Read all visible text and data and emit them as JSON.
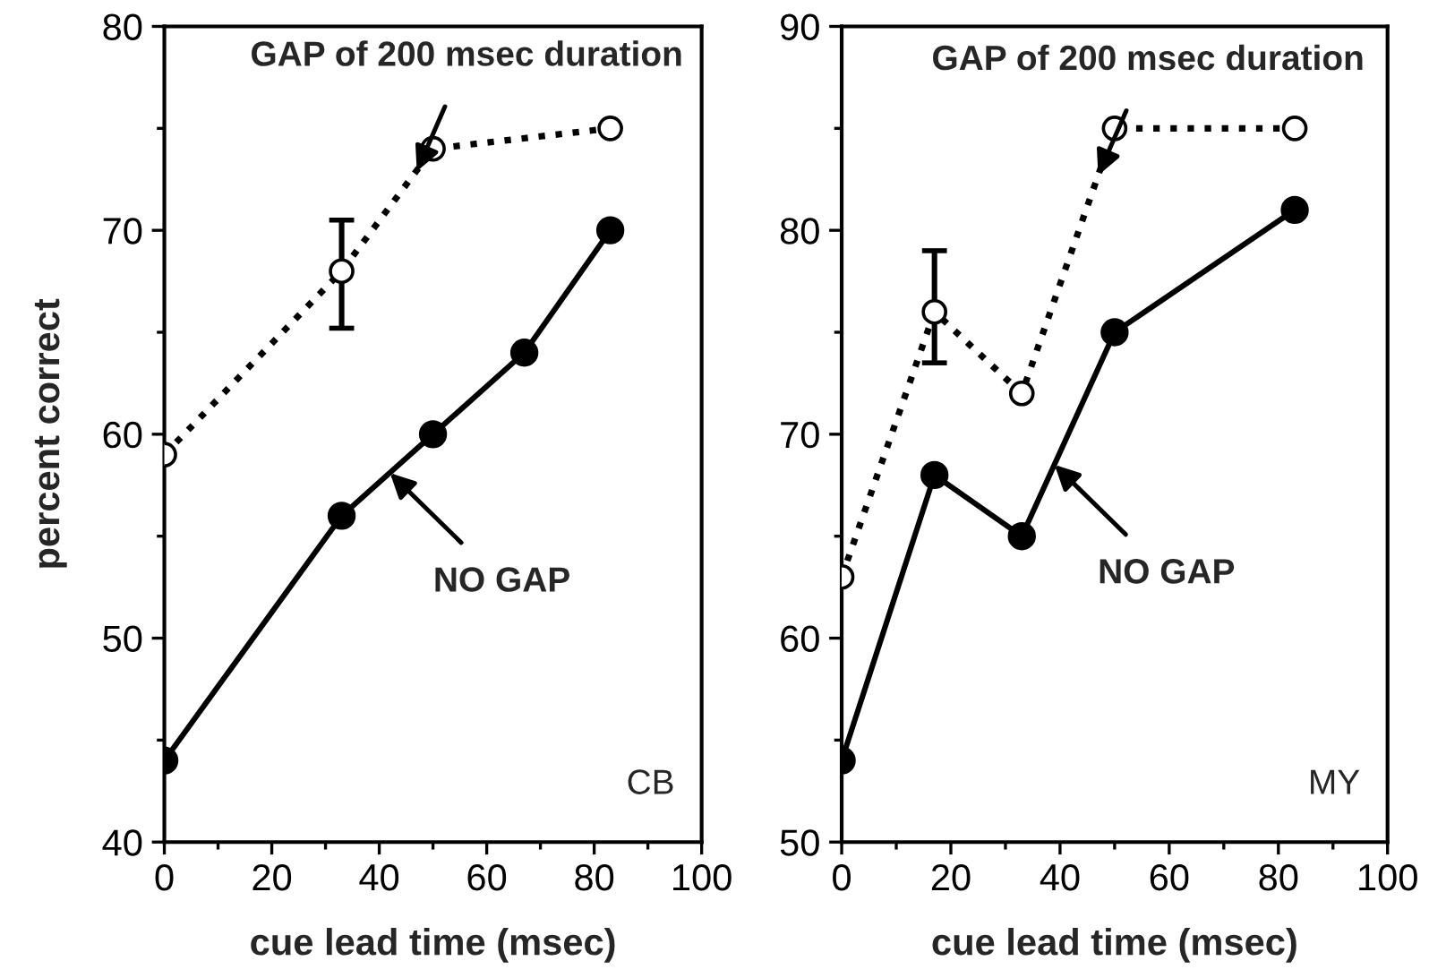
{
  "chart_data": [
    {
      "type": "line",
      "xlabel": "cue lead time (msec)",
      "ylabel": "percent correct",
      "xlim": [
        0,
        100
      ],
      "ylim": [
        40,
        80
      ],
      "xticks": [
        0,
        20,
        40,
        60,
        80,
        100
      ],
      "yticks": [
        40,
        50,
        60,
        70,
        80
      ],
      "grid": false,
      "marker": "circle",
      "series": [
        {
          "color": "#000000",
          "line_style": "dotted",
          "x": [
            0,
            33,
            50,
            83
          ],
          "values": [
            59,
            68,
            74,
            75
          ],
          "errors": [
            null,
            [
              65.2,
              70.5
            ],
            null,
            null
          ]
        },
        {
          "color": "#000000",
          "line_style": "solid",
          "x": [
            0,
            33,
            50,
            67,
            83
          ],
          "values": [
            44,
            56,
            60,
            64,
            70
          ]
        }
      ],
      "annotations": [
        {
          "text": "GAP of 200 msec duration",
          "x": 47,
          "y": 72.9
        },
        {
          "text": "NO GAP",
          "x": 42,
          "y": 58.1
        },
        "CB"
      ]
    },
    {
      "type": "line",
      "xlabel": "cue lead time (msec)",
      "xlim": [
        0,
        100
      ],
      "ylim": [
        50,
        90
      ],
      "xticks": [
        0,
        20,
        40,
        60,
        80,
        100
      ],
      "yticks": [
        50,
        60,
        70,
        80,
        90
      ],
      "grid": false,
      "marker": "circle",
      "series": [
        {
          "color": "#000000",
          "line_style": "dotted",
          "x": [
            0,
            17,
            33,
            50,
            83
          ],
          "values": [
            63,
            76,
            72,
            85,
            85
          ],
          "errors": [
            null,
            [
              73.5,
              79
            ],
            null,
            null,
            null
          ]
        },
        {
          "color": "#000000",
          "line_style": "solid",
          "x": [
            0,
            17,
            33,
            50,
            83
          ],
          "values": [
            54,
            68,
            65,
            75,
            81
          ]
        }
      ],
      "annotations": [
        {
          "text": "GAP of 200 msec duration",
          "x": 47,
          "y": 82.7
        },
        {
          "text": "NO GAP",
          "x": 39,
          "y": 68.5
        },
        "MY"
      ]
    }
  ]
}
